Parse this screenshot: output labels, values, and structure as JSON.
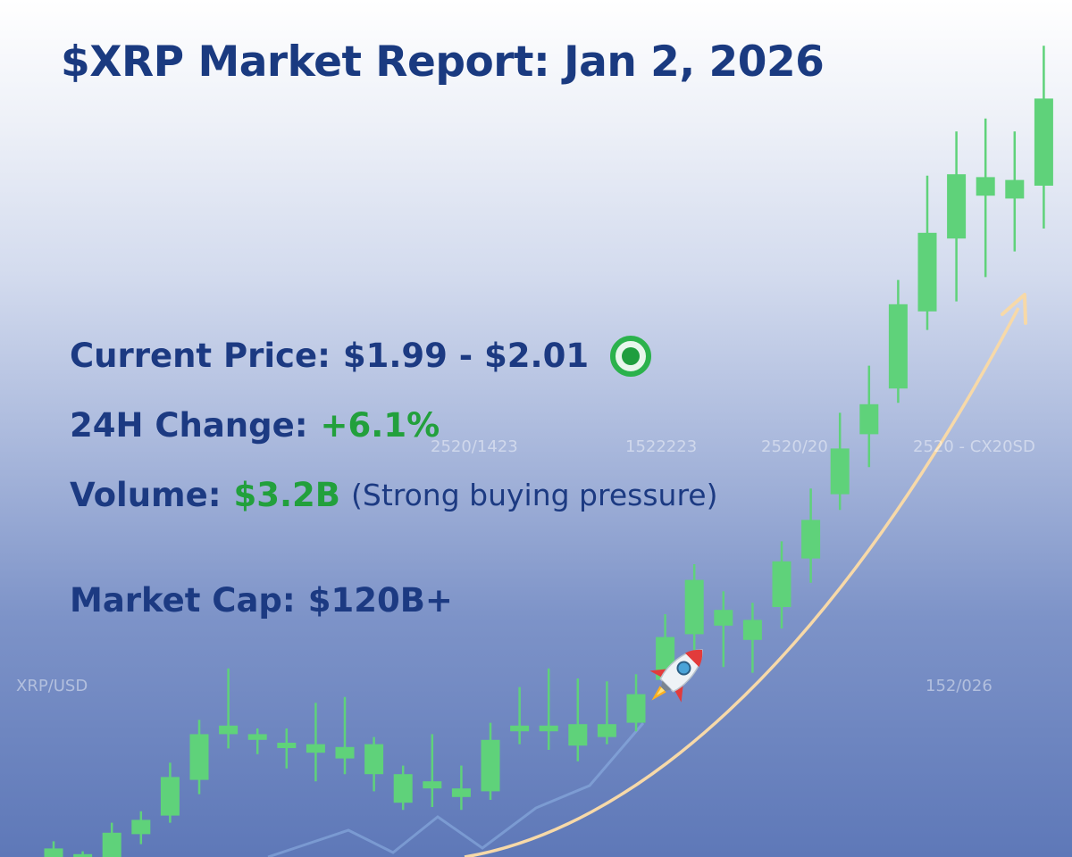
{
  "title": "$XRP Market Report: Jan 2, 2026",
  "stats": {
    "price_label": "Current Price:",
    "price_value": "$1.99 - $2.01",
    "status_icon": "green-circle-icon",
    "change_label": "24H Change:",
    "change_value": "+6.1%",
    "volume_label": "Volume:",
    "volume_value": "$3.2B",
    "volume_note": "(Strong buying pressure)",
    "cap_label": "Market Cap:",
    "cap_value": "$120B+"
  },
  "background_labels": {
    "pair_left": "XRP/USD",
    "date_left": "2520/1423",
    "date_mid": "1522223",
    "date_right": "2520/20",
    "pair_right": "2520 - CX20SD",
    "bottom_right": "152/026"
  },
  "decorations": {
    "rocket_icon": "rocket-icon",
    "trend_arrow_icon": "trend-arrow-icon"
  },
  "colors": {
    "title": "#1a3a80",
    "text": "#1c3a82",
    "positive": "#22a03c",
    "candle": "#5fd27a",
    "trend": "#f7d9a8"
  },
  "chart_data": {
    "type": "candlestick",
    "title": "",
    "xlabel": "",
    "ylabel": "",
    "candles": [
      {
        "open": 0.0,
        "close": 0.6,
        "high": 1.1,
        "low": 0.0
      },
      {
        "open": 0.0,
        "close": 0.2,
        "high": 0.4,
        "low": 0.0
      },
      {
        "open": 0.0,
        "close": 1.7,
        "high": 2.4,
        "low": 0.0
      },
      {
        "open": 1.6,
        "close": 2.6,
        "high": 3.2,
        "low": 0.9
      },
      {
        "open": 2.9,
        "close": 5.6,
        "high": 6.6,
        "low": 2.4
      },
      {
        "open": 5.4,
        "close": 8.6,
        "high": 9.6,
        "low": 4.4
      },
      {
        "open": 8.6,
        "close": 9.2,
        "high": 13.2,
        "low": 7.6
      },
      {
        "open": 8.6,
        "close": 8.2,
        "high": 9.0,
        "low": 7.2
      },
      {
        "open": 8.0,
        "close": 7.7,
        "high": 9.0,
        "low": 6.2
      },
      {
        "open": 7.9,
        "close": 7.3,
        "high": 10.8,
        "low": 5.3
      },
      {
        "open": 7.7,
        "close": 6.9,
        "high": 11.2,
        "low": 5.8
      },
      {
        "open": 7.9,
        "close": 5.8,
        "high": 8.4,
        "low": 4.6
      },
      {
        "open": 5.8,
        "close": 3.8,
        "high": 6.4,
        "low": 3.3
      },
      {
        "open": 5.3,
        "close": 4.8,
        "high": 8.6,
        "low": 3.5
      },
      {
        "open": 4.8,
        "close": 4.2,
        "high": 6.4,
        "low": 3.3
      },
      {
        "open": 4.6,
        "close": 8.2,
        "high": 9.4,
        "low": 4.0
      },
      {
        "open": 9.2,
        "close": 8.8,
        "high": 11.9,
        "low": 7.9
      },
      {
        "open": 9.2,
        "close": 8.8,
        "high": 13.2,
        "low": 7.5
      },
      {
        "open": 9.3,
        "close": 7.8,
        "high": 12.5,
        "low": 6.7
      },
      {
        "open": 9.3,
        "close": 8.4,
        "high": 12.3,
        "low": 7.9
      },
      {
        "open": 9.4,
        "close": 11.4,
        "high": 12.8,
        "low": 8.8
      },
      {
        "open": 12.4,
        "close": 15.4,
        "high": 17.0,
        "low": 12.0
      },
      {
        "open": 15.6,
        "close": 19.4,
        "high": 20.5,
        "low": 13.2
      },
      {
        "open": 17.3,
        "close": 16.2,
        "high": 18.6,
        "low": 13.3
      },
      {
        "open": 16.6,
        "close": 15.2,
        "high": 17.8,
        "low": 12.9
      },
      {
        "open": 17.5,
        "close": 20.7,
        "high": 22.1,
        "low": 16.0
      },
      {
        "open": 20.9,
        "close": 23.6,
        "high": 25.8,
        "low": 19.2
      },
      {
        "open": 25.4,
        "close": 28.6,
        "high": 31.1,
        "low": 24.3
      },
      {
        "open": 29.6,
        "close": 31.7,
        "high": 34.4,
        "low": 27.3
      },
      {
        "open": 32.8,
        "close": 38.7,
        "high": 40.4,
        "low": 31.8
      },
      {
        "open": 38.2,
        "close": 43.7,
        "high": 47.7,
        "low": 36.9
      },
      {
        "open": 43.3,
        "close": 47.8,
        "high": 50.8,
        "low": 38.9
      },
      {
        "open": 46.3,
        "close": 47.6,
        "high": 51.7,
        "low": 40.6
      },
      {
        "open": 46.1,
        "close": 47.4,
        "high": 50.8,
        "low": 42.4
      },
      {
        "open": 47.0,
        "close": 53.1,
        "high": 56.8,
        "low": 44.0
      }
    ]
  }
}
